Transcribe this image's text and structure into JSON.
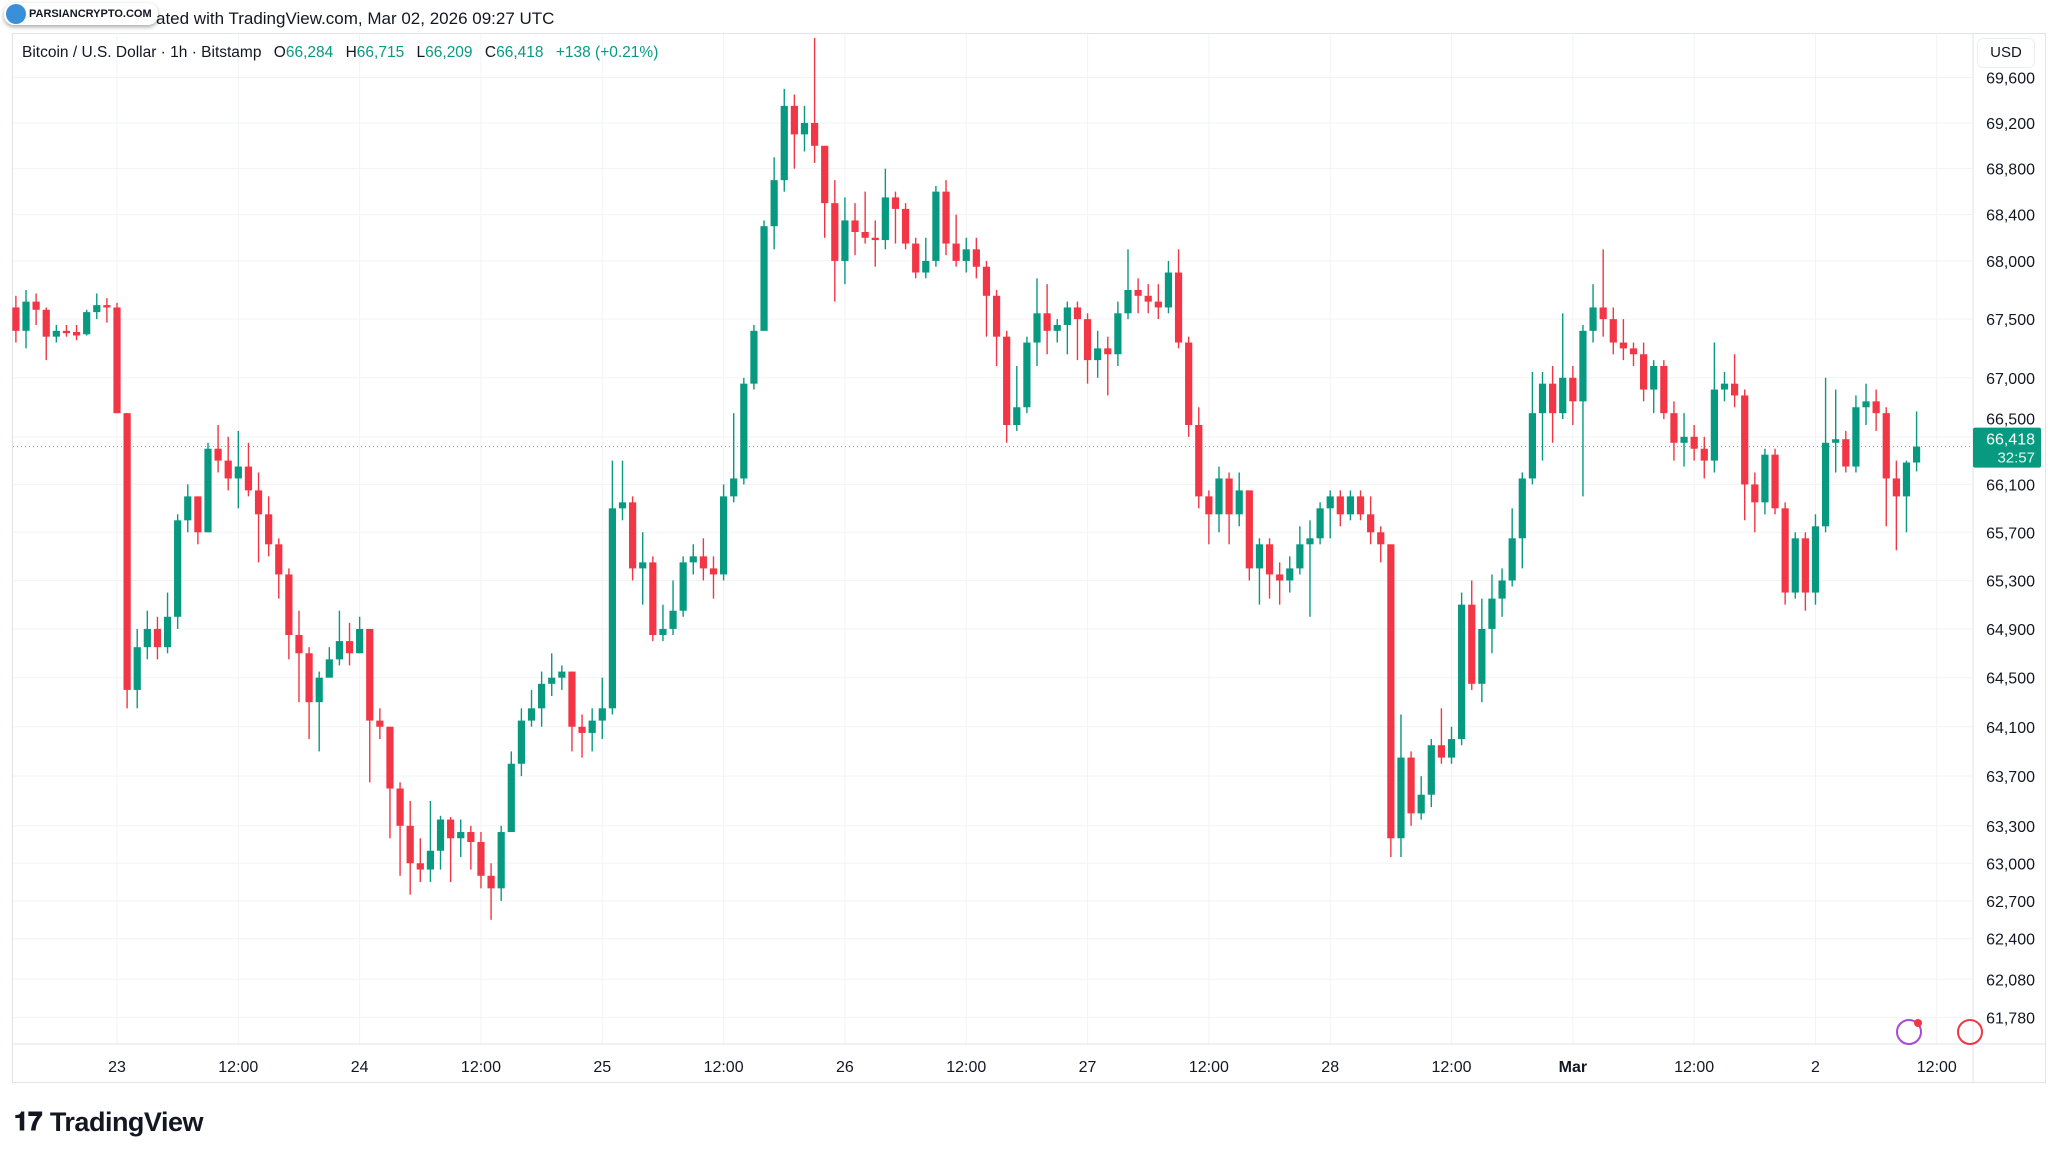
{
  "header": {
    "watermark_text": "PARSIANCRYPTO.COM",
    "caption": "ated with TradingView.com, Mar 02, 2026 09:27 UTC"
  },
  "legend": {
    "symbol": "Bitcoin / U.S. Dollar · 1h · Bitstamp",
    "o_label": "O",
    "o": "66,284",
    "h_label": "H",
    "h": "66,715",
    "l_label": "L",
    "l": "66,209",
    "c_label": "C",
    "c": "66,418",
    "change": "+138 (+0.21%)"
  },
  "currency": "USD",
  "last_price": {
    "price": "66,418",
    "countdown": "32:57"
  },
  "brand": "TradingView",
  "colors": {
    "up": "#089981",
    "down": "#f23645",
    "grid": "#f2f3f5",
    "text": "#131722"
  },
  "chart_data": {
    "type": "candlestick",
    "interval": "1h",
    "y_scale": "log",
    "ylim": [
      61780,
      69600
    ],
    "grid": true,
    "y_ticks": [
      69600,
      69200,
      68800,
      68400,
      68000,
      67500,
      67000,
      66500,
      66100,
      65700,
      65300,
      64900,
      64500,
      64100,
      63700,
      63300,
      63000,
      62700,
      62400,
      62080,
      61780
    ],
    "y_tick_labels": [
      "69,600",
      "69,200",
      "68,800",
      "68,400",
      "68,000",
      "67,500",
      "67,000",
      "66,500",
      "66,100",
      "65,700",
      "65,300",
      "64,900",
      "64,500",
      "64,100",
      "63,700",
      "63,300",
      "63,000",
      "62,700",
      "62,400",
      "62,080",
      "61,780"
    ],
    "x_ticks": [
      {
        "label": "23",
        "index": 10
      },
      {
        "label": "12:00",
        "index": 22
      },
      {
        "label": "24",
        "index": 34
      },
      {
        "label": "12:00",
        "index": 46
      },
      {
        "label": "25",
        "index": 58
      },
      {
        "label": "12:00",
        "index": 70
      },
      {
        "label": "26",
        "index": 82
      },
      {
        "label": "12:00",
        "index": 94
      },
      {
        "label": "27",
        "index": 106
      },
      {
        "label": "12:00",
        "index": 118
      },
      {
        "label": "28",
        "index": 130
      },
      {
        "label": "12:00",
        "index": 142
      },
      {
        "label": "Mar",
        "index": 154,
        "bold": true
      },
      {
        "label": "12:00",
        "index": 166
      },
      {
        "label": "2",
        "index": 178
      },
      {
        "label": "12:00",
        "index": 190
      }
    ],
    "first_candle": "Feb 22 14:00",
    "ohlc": [
      [
        67600,
        67700,
        67300,
        67400
      ],
      [
        67400,
        67750,
        67250,
        67650
      ],
      [
        67650,
        67720,
        67450,
        67580
      ],
      [
        67580,
        67600,
        67150,
        67350
      ],
      [
        67350,
        67450,
        67300,
        67400
      ],
      [
        67400,
        67450,
        67350,
        67380
      ],
      [
        67390,
        67450,
        67320,
        67360
      ],
      [
        67370,
        67580,
        67360,
        67560
      ],
      [
        67560,
        67720,
        67500,
        67620
      ],
      [
        67620,
        67680,
        67470,
        67600
      ],
      [
        67600,
        67640,
        66700,
        66700
      ],
      [
        66700,
        66700,
        64250,
        64400
      ],
      [
        64400,
        64900,
        64250,
        64750
      ],
      [
        64750,
        65050,
        64650,
        64900
      ],
      [
        64900,
        65000,
        64650,
        64750
      ],
      [
        64750,
        65200,
        64700,
        65000
      ],
      [
        65000,
        65850,
        64900,
        65800
      ],
      [
        65800,
        66100,
        65700,
        66000
      ],
      [
        66000,
        66000,
        65600,
        65700
      ],
      [
        65700,
        66450,
        65700,
        66400
      ],
      [
        66400,
        66600,
        66200,
        66300
      ],
      [
        66300,
        66500,
        66050,
        66150
      ],
      [
        66150,
        66550,
        65900,
        66250
      ],
      [
        66250,
        66450,
        66000,
        66050
      ],
      [
        66050,
        66200,
        65450,
        65850
      ],
      [
        65850,
        66000,
        65500,
        65600
      ],
      [
        65600,
        65650,
        65150,
        65350
      ],
      [
        65350,
        65400,
        64650,
        64850
      ],
      [
        64850,
        65050,
        64300,
        64700
      ],
      [
        64700,
        64750,
        64000,
        64300
      ],
      [
        64300,
        64550,
        63900,
        64500
      ],
      [
        64500,
        64750,
        64550,
        64650
      ],
      [
        64650,
        65050,
        64600,
        64800
      ],
      [
        64800,
        64950,
        64600,
        64700
      ],
      [
        64700,
        65000,
        64700,
        64900
      ],
      [
        64900,
        64900,
        63650,
        64150
      ],
      [
        64150,
        64250,
        64000,
        64100
      ],
      [
        64100,
        64100,
        63200,
        63600
      ],
      [
        63600,
        63650,
        62900,
        63300
      ],
      [
        63300,
        63500,
        62750,
        63000
      ],
      [
        63000,
        63200,
        62850,
        62950
      ],
      [
        62950,
        63500,
        62850,
        63100
      ],
      [
        63100,
        63380,
        62950,
        63350
      ],
      [
        63350,
        63370,
        62850,
        63200
      ],
      [
        63200,
        63350,
        63050,
        63250
      ],
      [
        63250,
        63300,
        62950,
        63170
      ],
      [
        63170,
        63250,
        62800,
        62900
      ],
      [
        62900,
        63000,
        62550,
        62800
      ],
      [
        62800,
        63300,
        62700,
        63250
      ],
      [
        63250,
        63900,
        63250,
        63800
      ],
      [
        63800,
        64250,
        63700,
        64150
      ],
      [
        64150,
        64400,
        64100,
        64250
      ],
      [
        64250,
        64550,
        64100,
        64450
      ],
      [
        64450,
        64700,
        64350,
        64500
      ],
      [
        64500,
        64600,
        64400,
        64550
      ],
      [
        64550,
        64550,
        63900,
        64100
      ],
      [
        64100,
        64200,
        63850,
        64050
      ],
      [
        64050,
        64250,
        63900,
        64150
      ],
      [
        64150,
        64500,
        64000,
        64250
      ],
      [
        64250,
        66300,
        64200,
        65900
      ],
      [
        65900,
        66300,
        65800,
        65950
      ],
      [
        65950,
        66000,
        65300,
        65400
      ],
      [
        65400,
        65700,
        65100,
        65450
      ],
      [
        65450,
        65500,
        64800,
        64850
      ],
      [
        64850,
        65100,
        64800,
        64900
      ],
      [
        64900,
        65300,
        64850,
        65050
      ],
      [
        65050,
        65500,
        65000,
        65450
      ],
      [
        65450,
        65600,
        65350,
        65500
      ],
      [
        65500,
        65650,
        65300,
        65400
      ],
      [
        65400,
        65500,
        65150,
        65350
      ],
      [
        65350,
        66100,
        65300,
        66000
      ],
      [
        66000,
        66700,
        65950,
        66150
      ],
      [
        66150,
        67000,
        66100,
        66950
      ],
      [
        66950,
        67450,
        66900,
        67400
      ],
      [
        67400,
        68350,
        67400,
        68300
      ],
      [
        68300,
        68900,
        68100,
        68700
      ],
      [
        68700,
        69500,
        68600,
        69350
      ],
      [
        69350,
        69450,
        68800,
        69100
      ],
      [
        69100,
        69350,
        68950,
        69200
      ],
      [
        69200,
        69950,
        68850,
        69000
      ],
      [
        69000,
        69000,
        68200,
        68500
      ],
      [
        68500,
        68700,
        67650,
        68000
      ],
      [
        68000,
        68550,
        67800,
        68350
      ],
      [
        68350,
        68500,
        68050,
        68250
      ],
      [
        68250,
        68600,
        68150,
        68200
      ],
      [
        68200,
        68350,
        67950,
        68180
      ],
      [
        68180,
        68800,
        68100,
        68550
      ],
      [
        68550,
        68600,
        68150,
        68450
      ],
      [
        68450,
        68500,
        68100,
        68150
      ],
      [
        68150,
        68200,
        67850,
        67900
      ],
      [
        67900,
        68200,
        67850,
        68000
      ],
      [
        68000,
        68650,
        67950,
        68600
      ],
      [
        68600,
        68700,
        68050,
        68150
      ],
      [
        68150,
        68400,
        67950,
        68000
      ],
      [
        68000,
        68200,
        67900,
        68100
      ],
      [
        68100,
        68200,
        67850,
        67950
      ],
      [
        67950,
        68000,
        67350,
        67700
      ],
      [
        67700,
        67750,
        67100,
        67350
      ],
      [
        67350,
        67400,
        66450,
        66600
      ],
      [
        66600,
        67100,
        66550,
        66750
      ],
      [
        66750,
        67350,
        66700,
        67300
      ],
      [
        67300,
        67850,
        67100,
        67550
      ],
      [
        67550,
        67800,
        67200,
        67400
      ],
      [
        67400,
        67500,
        67300,
        67450
      ],
      [
        67450,
        67650,
        67200,
        67600
      ],
      [
        67600,
        67650,
        67150,
        67500
      ],
      [
        67500,
        67550,
        66950,
        67150
      ],
      [
        67150,
        67400,
        67000,
        67250
      ],
      [
        67250,
        67350,
        66850,
        67200
      ],
      [
        67200,
        67650,
        67100,
        67550
      ],
      [
        67550,
        68100,
        67500,
        67750
      ],
      [
        67750,
        67850,
        67550,
        67700
      ],
      [
        67700,
        67800,
        67550,
        67650
      ],
      [
        67650,
        67800,
        67500,
        67600
      ],
      [
        67600,
        68000,
        67550,
        67900
      ],
      [
        67900,
        68100,
        67250,
        67300
      ],
      [
        67300,
        67350,
        66500,
        66600
      ],
      [
        66600,
        66750,
        65900,
        66000
      ],
      [
        66000,
        66050,
        65600,
        65850
      ],
      [
        65850,
        66250,
        65700,
        66150
      ],
      [
        66150,
        66200,
        65600,
        65850
      ],
      [
        65850,
        66200,
        65750,
        66050
      ],
      [
        66050,
        66050,
        65300,
        65400
      ],
      [
        65400,
        65650,
        65100,
        65600
      ],
      [
        65600,
        65650,
        65150,
        65350
      ],
      [
        65350,
        65450,
        65100,
        65300
      ],
      [
        65300,
        65500,
        65200,
        65400
      ],
      [
        65400,
        65750,
        65350,
        65600
      ],
      [
        65600,
        65800,
        65000,
        65650
      ],
      [
        65650,
        65950,
        65600,
        65900
      ],
      [
        65900,
        66050,
        65650,
        66000
      ],
      [
        66000,
        66050,
        65750,
        65850
      ],
      [
        65850,
        66050,
        65800,
        66000
      ],
      [
        66000,
        66050,
        65800,
        65850
      ],
      [
        65850,
        66000,
        65600,
        65700
      ],
      [
        65700,
        65750,
        65450,
        65600
      ],
      [
        65600,
        65600,
        63050,
        63200
      ],
      [
        63200,
        64200,
        63050,
        63850
      ],
      [
        63850,
        63900,
        63300,
        63400
      ],
      [
        63400,
        63700,
        63350,
        63550
      ],
      [
        63550,
        64000,
        63450,
        63950
      ],
      [
        63950,
        64250,
        63800,
        63850
      ],
      [
        63850,
        64100,
        63800,
        64000
      ],
      [
        64000,
        65200,
        63950,
        65100
      ],
      [
        65100,
        65300,
        64400,
        64450
      ],
      [
        64450,
        65150,
        64300,
        64900
      ],
      [
        64900,
        65350,
        64700,
        65150
      ],
      [
        65150,
        65400,
        65000,
        65300
      ],
      [
        65300,
        65900,
        65250,
        65650
      ],
      [
        65650,
        66200,
        65400,
        66150
      ],
      [
        66150,
        67050,
        66100,
        66700
      ],
      [
        66700,
        67050,
        66300,
        66950
      ],
      [
        66950,
        67100,
        66450,
        66700
      ],
      [
        66700,
        67550,
        66650,
        67000
      ],
      [
        67000,
        67100,
        66600,
        66800
      ],
      [
        66800,
        67450,
        66000,
        67400
      ],
      [
        67400,
        67800,
        67300,
        67600
      ],
      [
        67600,
        68100,
        67350,
        67500
      ],
      [
        67500,
        67600,
        67200,
        67300
      ],
      [
        67300,
        67500,
        67150,
        67250
      ],
      [
        67250,
        67300,
        67100,
        67200
      ],
      [
        67200,
        67300,
        66800,
        66900
      ],
      [
        66900,
        67150,
        66700,
        67100
      ],
      [
        67100,
        67150,
        66650,
        66700
      ],
      [
        66700,
        66800,
        66300,
        66450
      ],
      [
        66450,
        66700,
        66250,
        66500
      ],
      [
        66500,
        66600,
        66300,
        66400
      ],
      [
        66400,
        66500,
        66150,
        66300
      ],
      [
        66300,
        67300,
        66200,
        66900
      ],
      [
        66900,
        67050,
        66800,
        66950
      ],
      [
        66950,
        67200,
        66750,
        66850
      ],
      [
        66850,
        66900,
        65800,
        66100
      ],
      [
        66100,
        66200,
        65700,
        65950
      ],
      [
        65950,
        66400,
        65850,
        66350
      ],
      [
        66350,
        66400,
        65850,
        65900
      ],
      [
        65900,
        65950,
        65100,
        65200
      ],
      [
        65200,
        65700,
        65150,
        65650
      ],
      [
        65650,
        65700,
        65050,
        65200
      ],
      [
        65200,
        65850,
        65100,
        65750
      ],
      [
        65750,
        67000,
        65700,
        66450
      ],
      [
        66450,
        66900,
        66200,
        66480
      ],
      [
        66480,
        66550,
        66200,
        66250
      ],
      [
        66250,
        66850,
        66200,
        66750
      ],
      [
        66750,
        66950,
        66600,
        66800
      ],
      [
        66800,
        66900,
        66550,
        66700
      ],
      [
        66700,
        66750,
        65750,
        66150
      ],
      [
        66150,
        66300,
        65550,
        66000
      ],
      [
        66000,
        66300,
        65700,
        66284
      ],
      [
        66284,
        66715,
        66209,
        66418
      ]
    ]
  }
}
